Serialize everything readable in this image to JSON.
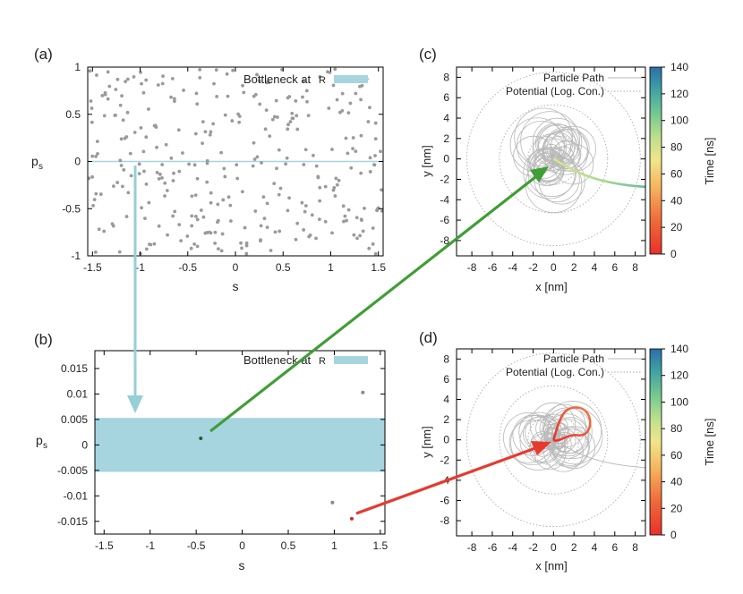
{
  "chart_data": [
    {
      "panel": "a",
      "panel_label": "(a)",
      "type": "scatter",
      "xlabel": "s",
      "ylabel_main": "p",
      "ylabel_sub": "s",
      "xlim": [
        -1.55,
        1.55
      ],
      "ylim": [
        -1,
        1
      ],
      "xticks": [
        -1.5,
        -1,
        -0.5,
        0,
        0.5,
        1,
        1.5
      ],
      "xtick_labels": [
        "-1.5",
        "-1",
        "-0.5",
        "0",
        "0.5",
        "1",
        "1.5"
      ],
      "yticks": [
        -1,
        -0.5,
        0,
        0.5,
        1
      ],
      "ytick_labels": [
        "-1",
        "-0.5",
        "0",
        "0.5",
        "1"
      ],
      "legend_label": "Bottleneck at",
      "legend_symbol": "R",
      "legend_position": "top-right",
      "bottleneck_center": 0,
      "bottleneck_halfwidth": 0.005,
      "points": {
        "count": 320,
        "distribution": "uniform",
        "x_range": [
          -1.55,
          1.55
        ],
        "y_range": [
          -0.98,
          0.98
        ],
        "seed": 7
      }
    },
    {
      "panel": "b",
      "panel_label": "(b)",
      "type": "scatter",
      "xlabel": "s",
      "ylabel_main": "p",
      "ylabel_sub": "s",
      "xlim": [
        -1.6,
        1.55
      ],
      "ylim": [
        -0.0175,
        0.0185
      ],
      "xticks": [
        -1.5,
        -1,
        -0.5,
        0,
        0.5,
        1,
        1.5
      ],
      "xtick_labels": [
        "-1.5",
        "-1",
        "-0.5",
        "0",
        "0.5",
        "1",
        "1.5"
      ],
      "yticks": [
        -0.015,
        -0.01,
        -0.005,
        0,
        0.005,
        0.01,
        0.015
      ],
      "ytick_labels": [
        "-0.015",
        "-0.01",
        "-0.005",
        "0",
        "0.005",
        "0.01",
        "0.015"
      ],
      "legend_label": "Bottleneck at",
      "legend_symbol": "R",
      "legend_position": "top-right",
      "band": [
        -0.0053,
        0.0053
      ],
      "points_x": [
        -0.45,
        0.98,
        1.31,
        1.19
      ],
      "points_y": [
        0.0013,
        -0.0113,
        0.0103,
        -0.0145
      ],
      "point_colors": [
        "#2a5a2a",
        "#888888",
        "#888888",
        "#d62728"
      ]
    },
    {
      "panel": "c",
      "panel_label": "(c)",
      "type": "line",
      "xlabel": "x [nm]",
      "ylabel": "y [nm]",
      "xlim": [
        -9.5,
        9
      ],
      "ylim": [
        -9.5,
        9
      ],
      "xticks": [
        -8,
        -6,
        -4,
        -2,
        0,
        2,
        4,
        6,
        8
      ],
      "xtick_labels": [
        "-8",
        "-6",
        "-4",
        "-2",
        "0",
        "2",
        "4",
        "6",
        "8"
      ],
      "yticks": [
        -8,
        -6,
        -4,
        -2,
        0,
        2,
        4,
        6,
        8
      ],
      "ytick_labels": [
        "-8",
        "-6",
        "-4",
        "-2",
        "0",
        "2",
        "4",
        "6",
        "8"
      ],
      "legend": [
        "Particle Path",
        "Potential (Log. Con.)"
      ],
      "legend_position": "top-right",
      "potential_radii": [
        2.5,
        5.3,
        8.5
      ],
      "loop_count": 42,
      "exit_tail": {
        "from_x": 0,
        "from_y": 0,
        "to_x": 9,
        "to_y": -2.7
      },
      "colorbar_label": "Time [ns]",
      "colorbar_ticks": [
        0,
        20,
        40,
        60,
        80,
        100,
        120,
        140
      ],
      "colorbar_tick_labels": [
        "0",
        "20",
        "40",
        "60",
        "80",
        "100",
        "120",
        "140"
      ],
      "colorbar_range": [
        0,
        140
      ],
      "highlight_time_range": [
        60,
        110
      ]
    },
    {
      "panel": "d",
      "panel_label": "(d)",
      "type": "line",
      "xlabel": "x [nm]",
      "ylabel": "y [nm]",
      "xlim": [
        -9.5,
        9
      ],
      "ylim": [
        -9.5,
        9
      ],
      "xticks": [
        -8,
        -6,
        -4,
        -2,
        0,
        2,
        4,
        6,
        8
      ],
      "xtick_labels": [
        "-8",
        "-6",
        "-4",
        "-2",
        "0",
        "2",
        "4",
        "6",
        "8"
      ],
      "yticks": [
        -8,
        -6,
        -4,
        -2,
        0,
        2,
        4,
        6,
        8
      ],
      "ytick_labels": [
        "-8",
        "-6",
        "-4",
        "-2",
        "0",
        "2",
        "4",
        "6",
        "8"
      ],
      "legend": [
        "Particle Path",
        "Potential (Log. Con.)"
      ],
      "legend_position": "top-right",
      "potential_radii": [
        2.5,
        5.3,
        8.5
      ],
      "loop_count": 42,
      "exit_tail": {
        "from_x": 0,
        "from_y": 0,
        "to_x": 9,
        "to_y": -2.7
      },
      "red_loop": {
        "center_x": 2.2,
        "center_y": 1.8,
        "radius": 1.4
      },
      "colorbar_label": "Time [ns]",
      "colorbar_ticks": [
        0,
        20,
        40,
        60,
        80,
        100,
        120,
        140
      ],
      "colorbar_tick_labels": [
        "0",
        "20",
        "40",
        "60",
        "80",
        "100",
        "120",
        "140"
      ],
      "colorbar_range": [
        0,
        140
      ],
      "highlight_time_range": [
        0,
        20
      ]
    }
  ],
  "colors": {
    "bottleneck": "#a6d5df",
    "scatter_point": "#9a9a9a",
    "path": "#b8b8b8",
    "potential": "#aaaaaa",
    "arrow_teal": "#96cfd6",
    "arrow_green": "#3f9e35",
    "arrow_red": "#e63a2f",
    "axis": "#000000"
  }
}
